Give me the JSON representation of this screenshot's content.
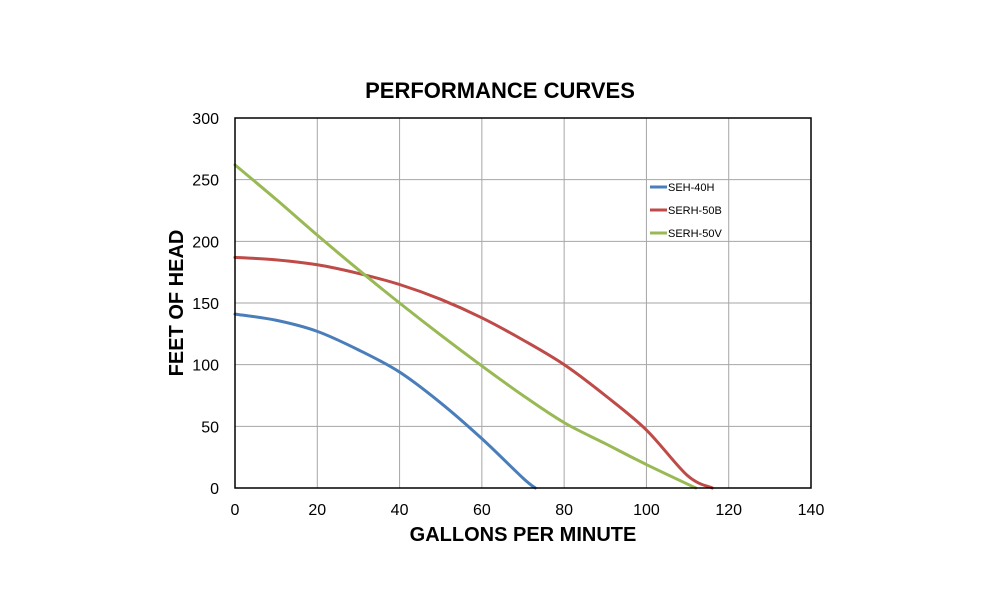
{
  "chart_data": {
    "type": "line",
    "title": "PERFORMANCE CURVES",
    "xlabel": "GALLONS PER MINUTE",
    "ylabel": "FEET OF HEAD",
    "xlim": [
      0,
      140
    ],
    "ylim": [
      0,
      300
    ],
    "xticks": [
      0,
      20,
      40,
      60,
      80,
      100,
      120,
      140
    ],
    "yticks": [
      0,
      50,
      100,
      150,
      200,
      250,
      300
    ],
    "grid": true,
    "legend_position": "top-right",
    "series": [
      {
        "name": "SEH-40H",
        "color": "#4a7ebb",
        "points": [
          [
            0,
            141
          ],
          [
            10,
            136
          ],
          [
            20,
            127
          ],
          [
            30,
            112
          ],
          [
            40,
            94
          ],
          [
            50,
            69
          ],
          [
            60,
            40
          ],
          [
            70,
            8
          ],
          [
            73,
            0
          ]
        ]
      },
      {
        "name": "SERH-50B",
        "color": "#be4b48",
        "points": [
          [
            0,
            187
          ],
          [
            10,
            185
          ],
          [
            20,
            181
          ],
          [
            30,
            174
          ],
          [
            40,
            165
          ],
          [
            50,
            153
          ],
          [
            60,
            138
          ],
          [
            70,
            120
          ],
          [
            80,
            100
          ],
          [
            90,
            75
          ],
          [
            100,
            47
          ],
          [
            110,
            10
          ],
          [
            116,
            0
          ]
        ]
      },
      {
        "name": "SERH-50V",
        "color": "#98b954",
        "points": [
          [
            0,
            262
          ],
          [
            10,
            234
          ],
          [
            20,
            205
          ],
          [
            30,
            177
          ],
          [
            40,
            150
          ],
          [
            50,
            124
          ],
          [
            60,
            99
          ],
          [
            70,
            75
          ],
          [
            80,
            53
          ],
          [
            90,
            36
          ],
          [
            100,
            19
          ],
          [
            112,
            0
          ]
        ]
      }
    ]
  }
}
